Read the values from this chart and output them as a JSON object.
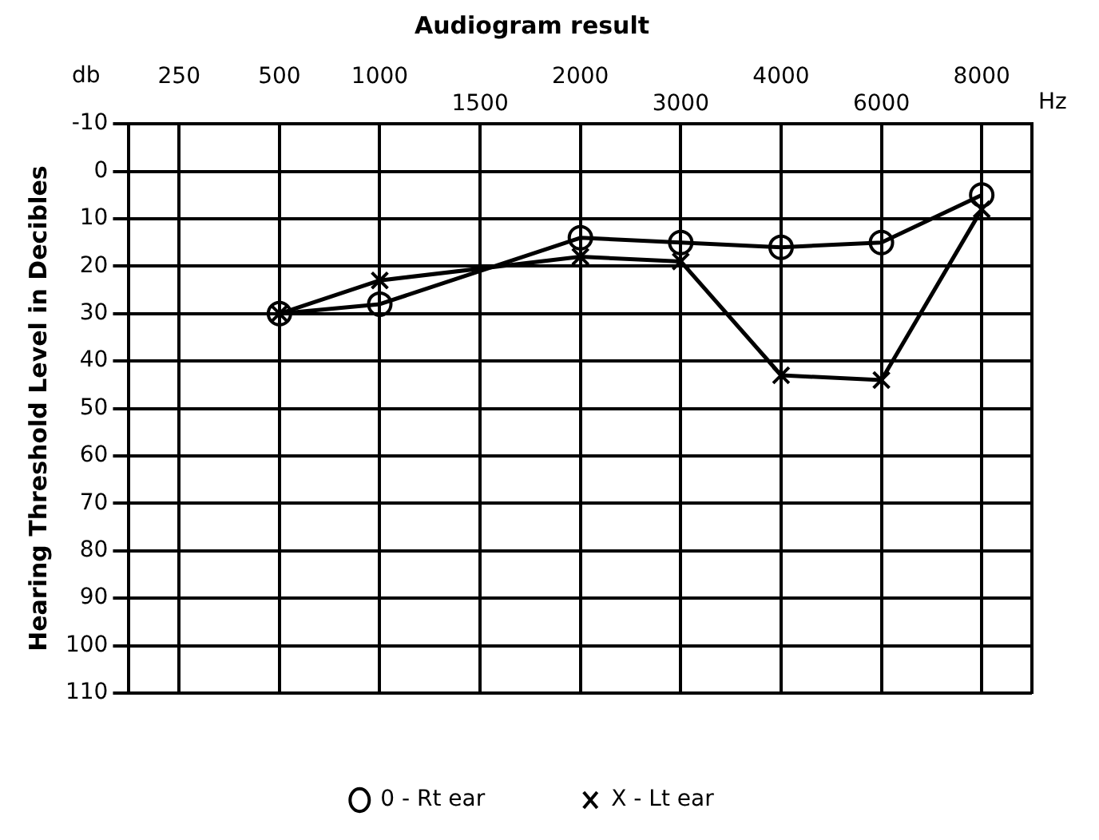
{
  "chart_data": {
    "type": "line",
    "title": "Audiogram result",
    "ylabel": "Hearing Threshold Level in Decibles",
    "xlabel": "Hz",
    "annotations": [
      "db"
    ],
    "categories": [
      "250",
      "500",
      "1000",
      "1500",
      "2000",
      "3000",
      "4000",
      "6000",
      "8000"
    ],
    "series": [
      {
        "name": "0 - Rt ear",
        "color": "#000000",
        "marker": "circle",
        "values": [
          null,
          30,
          28,
          null,
          14,
          15,
          16,
          15,
          5
        ]
      },
      {
        "name": "X - Lt ear",
        "color": "#000000",
        "marker": "cross",
        "values": [
          null,
          30,
          23,
          null,
          18,
          19,
          43,
          44,
          8
        ]
      }
    ],
    "ylim": [
      110,
      -10
    ],
    "yticks": [
      -10,
      0,
      10,
      20,
      30,
      40,
      50,
      60,
      70,
      80,
      90,
      100,
      110
    ],
    "grid": true,
    "legend": "bottom",
    "line_style": "solid"
  }
}
